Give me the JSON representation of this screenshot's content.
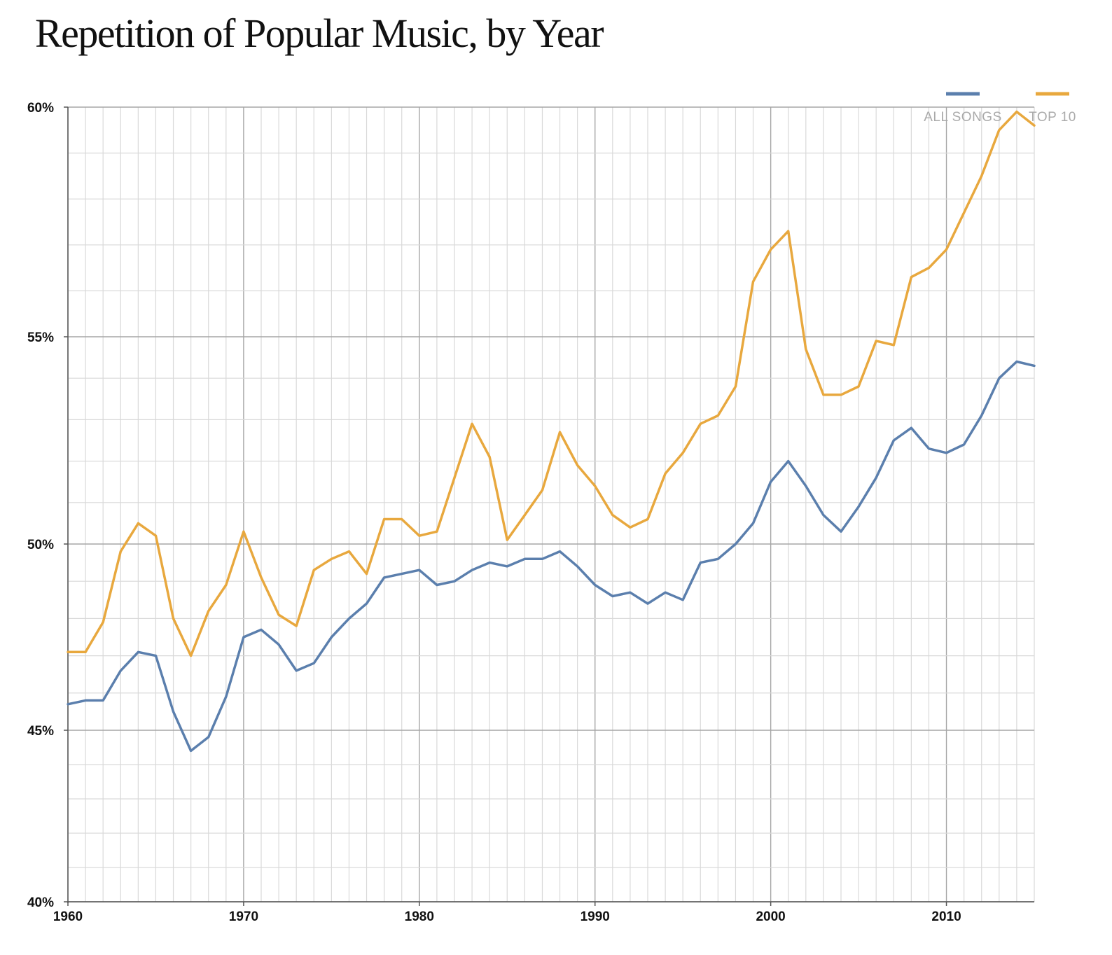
{
  "title": "Repetition of Popular Music, by Year",
  "chart_data": {
    "type": "line",
    "title": "Repetition of Popular Music, by Year",
    "xlabel": "",
    "ylabel": "",
    "xlim": [
      1960,
      2015
    ],
    "ylim": [
      40,
      60
    ],
    "y_scale": "nonlinear",
    "x_ticks": [
      1960,
      1970,
      1980,
      1990,
      2000,
      2010
    ],
    "x_tick_labels": [
      "1960",
      "1970",
      "1980",
      "1990",
      "2000",
      "2010"
    ],
    "y_ticks": [
      40,
      45,
      50,
      55,
      60
    ],
    "y_tick_labels": [
      "40%",
      "45%",
      "50%",
      "55%",
      "60%"
    ],
    "grid": true,
    "legend_position": "top-right",
    "x": [
      1960,
      1961,
      1962,
      1963,
      1964,
      1965,
      1966,
      1967,
      1968,
      1969,
      1970,
      1971,
      1972,
      1973,
      1974,
      1975,
      1976,
      1977,
      1978,
      1979,
      1980,
      1981,
      1982,
      1983,
      1984,
      1985,
      1986,
      1987,
      1988,
      1989,
      1990,
      1991,
      1992,
      1993,
      1994,
      1995,
      1996,
      1997,
      1998,
      1999,
      2000,
      2001,
      2002,
      2003,
      2004,
      2005,
      2006,
      2007,
      2008,
      2009,
      2010,
      2011,
      2012,
      2013,
      2014,
      2015
    ],
    "series": [
      {
        "name": "ALL SONGS",
        "color": "#5b7fad",
        "values": [
          45.7,
          45.8,
          45.8,
          46.6,
          47.1,
          47.0,
          45.5,
          44.4,
          44.8,
          45.9,
          47.5,
          47.7,
          47.3,
          46.6,
          46.8,
          47.5,
          48.0,
          48.4,
          49.1,
          49.2,
          49.3,
          48.9,
          49.0,
          49.3,
          49.5,
          49.4,
          49.6,
          49.6,
          49.8,
          49.4,
          48.9,
          48.6,
          48.7,
          48.4,
          48.7,
          48.5,
          49.5,
          49.6,
          50.0,
          50.5,
          51.5,
          52.0,
          51.4,
          50.7,
          50.3,
          50.9,
          51.6,
          52.5,
          52.8,
          52.3,
          52.2,
          52.4,
          53.1,
          54.0,
          54.4,
          54.3
        ]
      },
      {
        "name": "TOP 10",
        "color": "#e8a83e",
        "values": [
          47.1,
          47.1,
          47.9,
          49.8,
          50.5,
          50.2,
          48.0,
          47.0,
          48.2,
          48.9,
          50.3,
          49.1,
          48.1,
          47.8,
          49.3,
          49.6,
          49.8,
          49.2,
          50.6,
          50.6,
          50.2,
          50.3,
          51.6,
          52.9,
          52.1,
          50.1,
          50.7,
          51.3,
          52.7,
          51.9,
          51.4,
          50.7,
          50.4,
          50.6,
          51.7,
          52.2,
          52.9,
          53.1,
          53.8,
          56.2,
          56.9,
          57.3,
          54.7,
          53.6,
          53.6,
          53.8,
          54.9,
          54.8,
          56.3,
          56.5,
          56.9,
          57.7,
          58.5,
          59.5,
          59.9,
          59.6
        ]
      }
    ]
  }
}
